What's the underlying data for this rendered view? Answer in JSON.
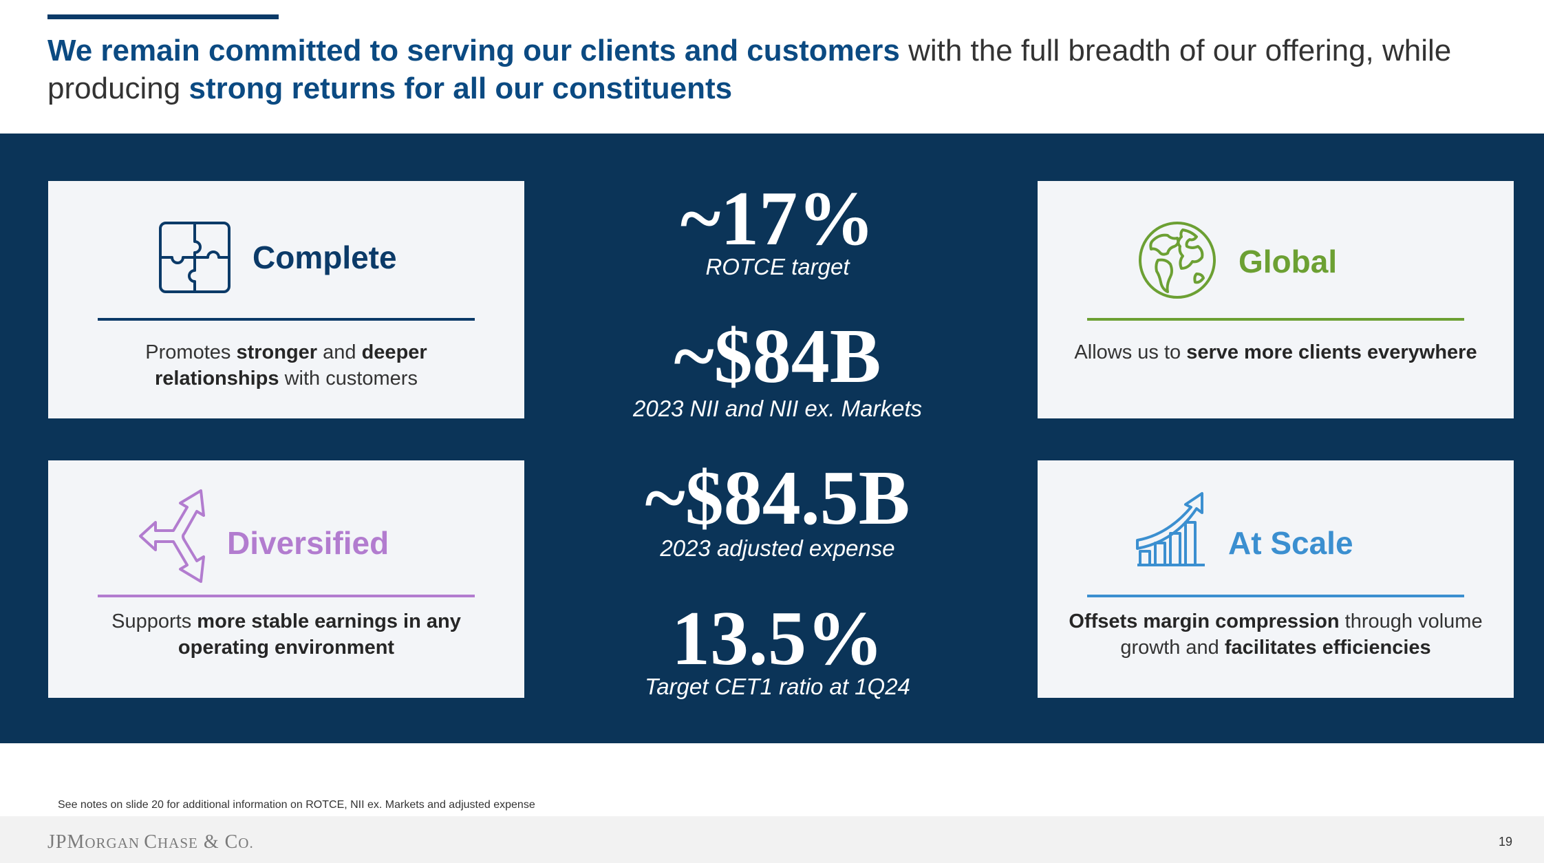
{
  "headline": {
    "part1": "We remain committed to serving our clients and customers",
    "part2": " with the full breadth of our offering, while producing ",
    "part3": "strong returns for all our constituents"
  },
  "cards": {
    "complete": {
      "title": "Complete",
      "body": [
        "Promotes ",
        "stronger",
        " and ",
        "deeper",
        " ",
        "relationships",
        " with customers"
      ],
      "icon": "puzzle-icon",
      "color": "#0b3a68"
    },
    "global": {
      "title": "Global",
      "body": [
        "Allows us to ",
        "serve more clients everywhere"
      ],
      "icon": "globe-icon",
      "color": "#6ca033"
    },
    "diversified": {
      "title": "Diversified",
      "body": [
        "Supports ",
        "more stable earnings in any operating environment"
      ],
      "icon": "diverging-arrows-icon",
      "color": "#b27ccf"
    },
    "scale": {
      "title": "At Scale",
      "body": [
        "Offsets margin compression",
        " through volume growth and ",
        "facilitates efficiencies"
      ],
      "icon": "growth-chart-icon",
      "color": "#3b8fd0"
    }
  },
  "metrics": [
    {
      "value": "~17%",
      "label": "ROTCE target"
    },
    {
      "value": "~$84B",
      "label": "2023 NII and NII ex. Markets"
    },
    {
      "value": "~$84.5B",
      "label": "2023 adjusted expense"
    },
    {
      "value": "13.5%",
      "label": "Target CET1 ratio at 1Q24"
    }
  ],
  "footnote": "See notes on slide 20 for additional information on ROTCE, NII ex. Markets and adjusted expense",
  "footer": {
    "logo": {
      "jp": "JP",
      "m": "M",
      "organ": "ORGAN ",
      "c": "C",
      "hase": "HASE",
      "amp": " & ",
      "co": "C",
      "o": "O."
    },
    "page_number": "19"
  }
}
